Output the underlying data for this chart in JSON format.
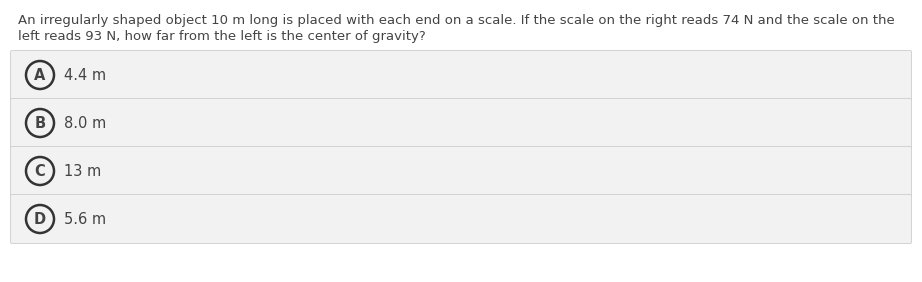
{
  "question_line1": "An irregularly shaped object 10 m long is placed with each end on a scale. If the scale on the right reads 74 N and the scale on the",
  "question_line2": "left reads 93 N, how far from the left is the center of gravity?",
  "options": [
    {
      "label": "A",
      "text": "4.4 m"
    },
    {
      "label": "B",
      "text": "8.0 m"
    },
    {
      "label": "C",
      "text": "13 m"
    },
    {
      "label": "D",
      "text": "5.6 m"
    }
  ],
  "bg_color": "#ffffff",
  "option_bg_color": "#f2f2f2",
  "option_border_color": "#cccccc",
  "text_color": "#444444",
  "circle_edge_color": "#333333",
  "question_fontsize": 9.5,
  "option_fontsize": 10.5,
  "label_fontsize": 10.5,
  "fig_width": 9.22,
  "fig_height": 2.82,
  "dpi": 100
}
